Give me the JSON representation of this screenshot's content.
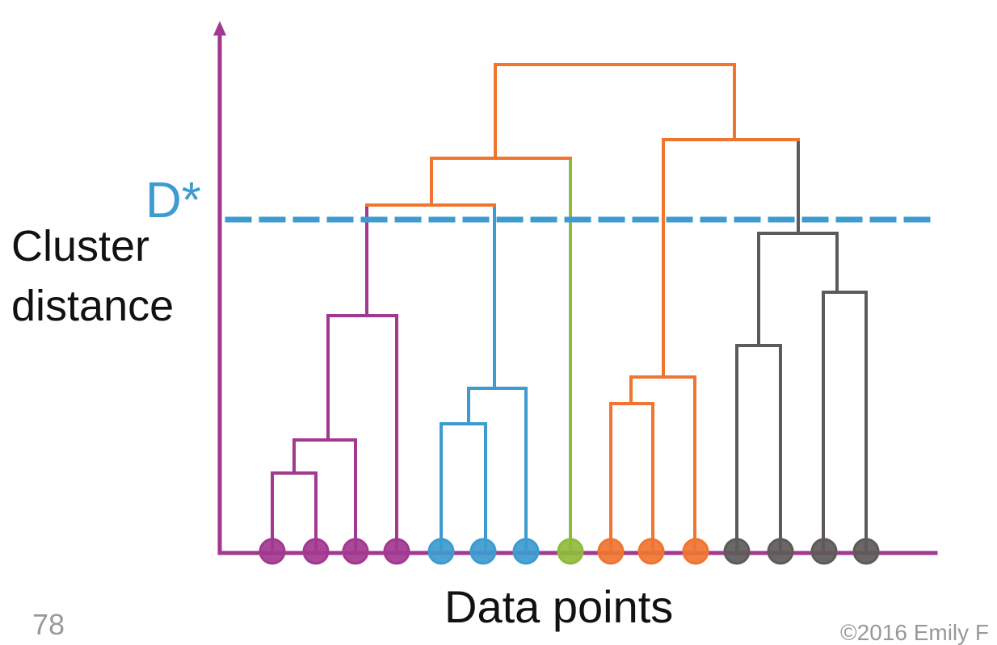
{
  "labels": {
    "y_axis_line1": "Cluster",
    "y_axis_line2": "distance",
    "x_axis": "Data points",
    "threshold": "D*",
    "slide_number": "78",
    "copyright": "©2016 Emily F"
  },
  "colors": {
    "axis": "#a2388f",
    "cluster_purple": "#a2388f",
    "cluster_blue": "#3d9bcf",
    "cluster_green": "#8fbb3c",
    "cluster_orange": "#ef7531",
    "cluster_gray": "#5f5a5a",
    "top_links": "#ef7531",
    "threshold_line": "#3d9bcf"
  },
  "points": [
    {
      "color": "cluster_purple"
    },
    {
      "color": "cluster_purple"
    },
    {
      "color": "cluster_purple"
    },
    {
      "color": "cluster_purple"
    },
    {
      "color": "cluster_blue"
    },
    {
      "color": "cluster_blue"
    },
    {
      "color": "cluster_blue"
    },
    {
      "color": "cluster_green"
    },
    {
      "color": "cluster_orange"
    },
    {
      "color": "cluster_orange"
    },
    {
      "color": "cluster_orange"
    },
    {
      "color": "cluster_gray"
    },
    {
      "color": "cluster_gray"
    },
    {
      "color": "cluster_gray"
    },
    {
      "color": "cluster_gray"
    }
  ]
}
